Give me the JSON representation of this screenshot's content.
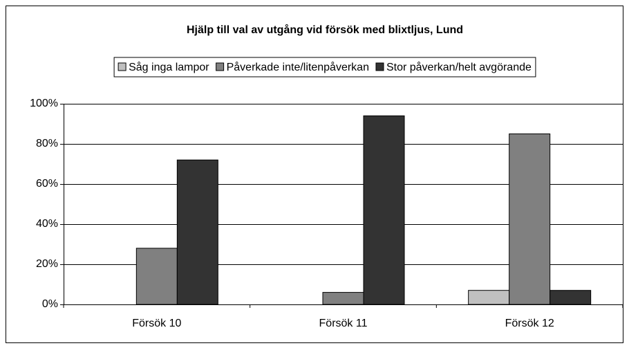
{
  "chart_data": {
    "type": "bar",
    "title": "Hjälp till val av utgång vid försök med blixtljus, Lund",
    "categories": [
      "Försök 10",
      "Försök 11",
      "Försök 12"
    ],
    "series": [
      {
        "name": "Såg inga lampor",
        "color": "#c0c0c0",
        "values": [
          0,
          0,
          7
        ]
      },
      {
        "name": "Påverkade inte/litenpåverkan",
        "color": "#808080",
        "values": [
          28,
          6,
          85
        ]
      },
      {
        "name": "Stor påverkan/helt avgörande",
        "color": "#333333",
        "values": [
          72,
          94,
          7
        ]
      }
    ],
    "ylim": [
      0,
      100
    ],
    "yticks": [
      {
        "value": 0,
        "label": "0%"
      },
      {
        "value": 20,
        "label": "20%"
      },
      {
        "value": 40,
        "label": "40%"
      },
      {
        "value": 60,
        "label": "60%"
      },
      {
        "value": 80,
        "label": "80%"
      },
      {
        "value": 100,
        "label": "100%"
      }
    ],
    "grid": true,
    "legend": "top"
  }
}
